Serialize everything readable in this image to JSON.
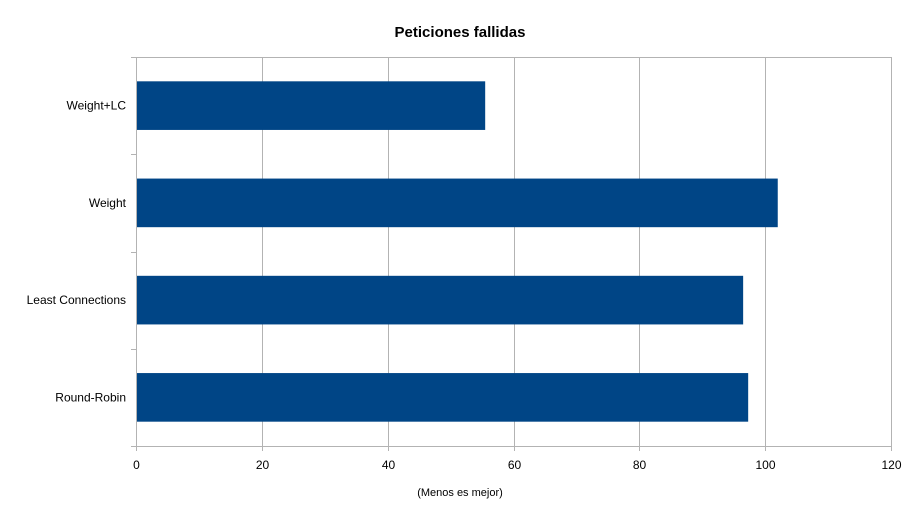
{
  "chart_data": {
    "type": "bar",
    "orientation": "horizontal",
    "title": "Peticiones fallidas",
    "xlabel": "(Menos es mejor)",
    "ylabel": "",
    "categories": [
      "Weight+LC",
      "Weight",
      "Least Connections",
      "Round-Robin"
    ],
    "values": [
      55.5,
      102,
      96.5,
      97.3
    ],
    "xlim": [
      0,
      120
    ],
    "x_ticks": [
      0,
      20,
      40,
      60,
      80,
      100,
      120
    ],
    "grid": "vertical",
    "legend": "none",
    "bar_color": "#004586",
    "grid_color": "#b3b3b3"
  }
}
